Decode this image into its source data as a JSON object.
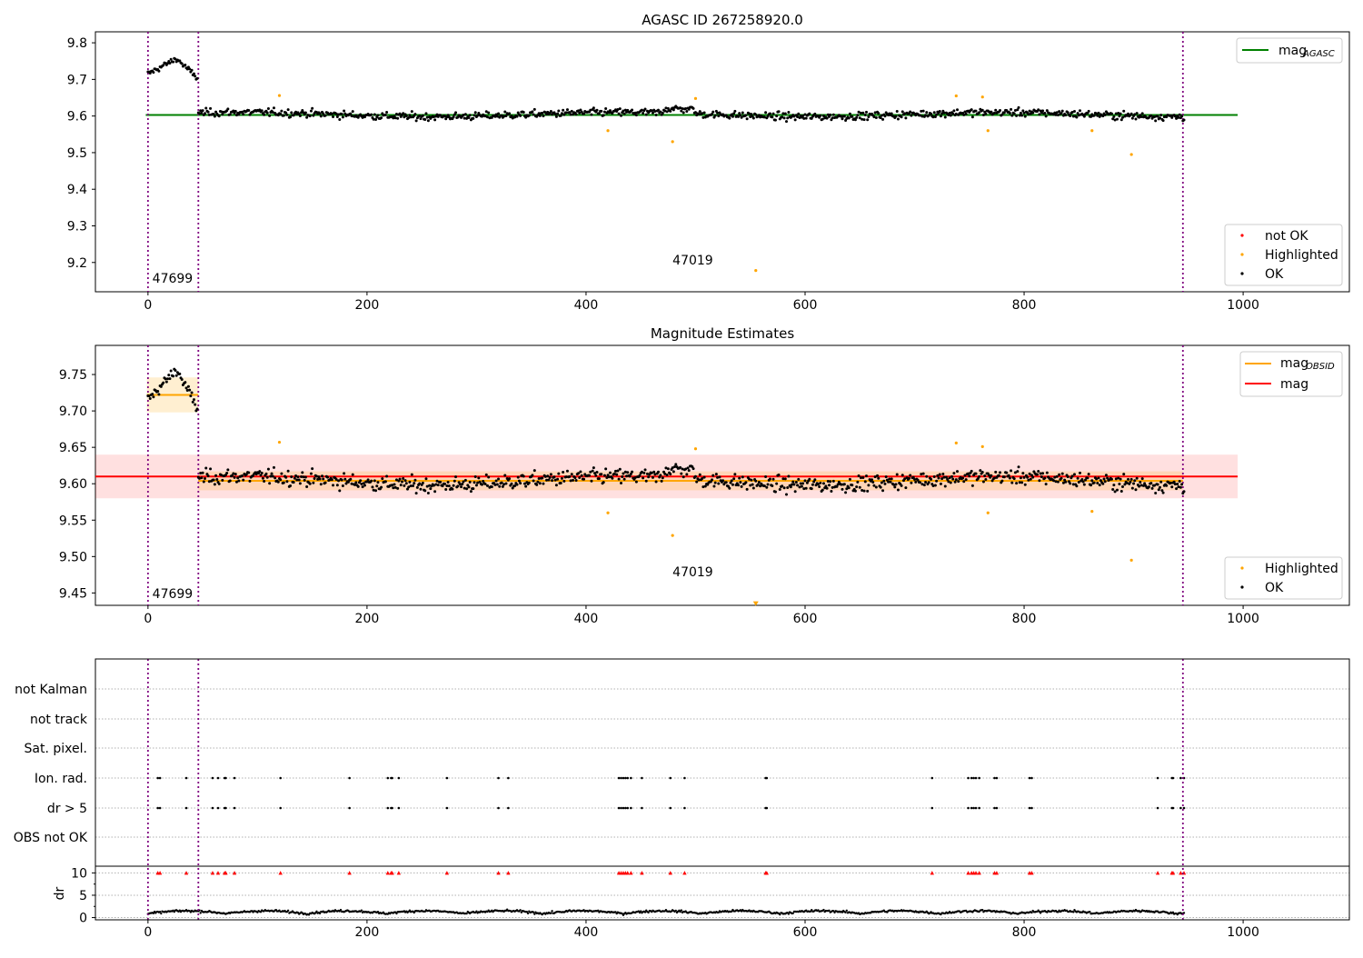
{
  "chart_data": [
    {
      "type": "scatter",
      "title": "AGASC ID 267258920.0",
      "xlim": [
        -48,
        1097
      ],
      "ylim": [
        9.12,
        9.83
      ],
      "x_ticks": [
        "0",
        "200",
        "400",
        "600",
        "800",
        "1000"
      ],
      "y_ticks": [
        "9.2",
        "9.3",
        "9.4",
        "9.5",
        "9.6",
        "9.7",
        "9.8"
      ],
      "vlines": [
        0,
        46,
        945
      ],
      "obsid_labels": [
        {
          "text": "47699",
          "x": 4,
          "y": 9.145
        },
        {
          "text": "47019",
          "x": 479,
          "y": 9.195
        }
      ],
      "mag_agasc": {
        "label_main": "mag",
        "label_sub": "AGASC",
        "value": 9.603,
        "x_range": [
          -2,
          995
        ],
        "color": "#008000"
      },
      "scatter_legend": [
        {
          "label": "not OK",
          "color": "#ff0000"
        },
        {
          "label": "Highlighted",
          "color": "#ffa500"
        },
        {
          "label": "OK",
          "color": "#000000"
        }
      ],
      "highlighted_points": [
        [
          120,
          9.656
        ],
        [
          420,
          9.56
        ],
        [
          479,
          9.53
        ],
        [
          500,
          9.648
        ],
        [
          555,
          9.178
        ],
        [
          738,
          9.655
        ],
        [
          762,
          9.652
        ],
        [
          767,
          9.56
        ],
        [
          862,
          9.56
        ],
        [
          898,
          9.495
        ]
      ],
      "ok_series_note": "black OK points follow a noisy band",
      "grid": false
    },
    {
      "type": "scatter",
      "title": "Magnitude Estimates",
      "xlim": [
        -48,
        1097
      ],
      "ylim": [
        9.433,
        9.79
      ],
      "x_ticks": [
        "0",
        "200",
        "400",
        "600",
        "800",
        "1000"
      ],
      "y_ticks": [
        "9.45",
        "9.50",
        "9.55",
        "9.60",
        "9.65",
        "9.70",
        "9.75"
      ],
      "vlines": [
        0,
        46,
        945
      ],
      "obsid_labels": [
        {
          "text": "47699",
          "x": 4,
          "y": 9.443
        },
        {
          "text": "47019",
          "x": 479,
          "y": 9.473
        }
      ],
      "mag_obsid": {
        "label_main": "mag",
        "label_sub": "OBSID",
        "color": "#ffa500",
        "segments": [
          {
            "x_range": [
              -1,
              46
            ],
            "value": 9.722,
            "band": [
              9.698,
              9.746
            ]
          },
          {
            "x_range": [
              46,
              945
            ],
            "value": 9.604,
            "band": [
              9.591,
              9.617
            ]
          }
        ]
      },
      "mag": {
        "label": "mag",
        "color": "#ff0000",
        "value": 9.61,
        "band": [
          9.58,
          9.64
        ],
        "x_range": [
          -48,
          995
        ]
      },
      "scatter_legend": [
        {
          "label": "Highlighted",
          "color": "#ffa500"
        },
        {
          "label": "OK",
          "color": "#000000"
        }
      ],
      "highlighted_points": [
        [
          120,
          9.657
        ],
        [
          420,
          9.56
        ],
        [
          479,
          9.529
        ],
        [
          500,
          9.648
        ],
        [
          738,
          9.656
        ],
        [
          762,
          9.651
        ],
        [
          767,
          9.56
        ],
        [
          862,
          9.562
        ],
        [
          898,
          9.495
        ]
      ],
      "offscale_markers": [
        [
          555,
          9.436
        ]
      ],
      "grid": false
    },
    {
      "type": "scatter",
      "title": "",
      "xlim": [
        -48,
        1097
      ],
      "x_ticks": [
        "0",
        "200",
        "400",
        "600",
        "800",
        "1000"
      ],
      "categories": [
        "not Kalman",
        "not track",
        "Sat. pixel.",
        "Ion. rad.",
        "dr > 5",
        "OBS not OK"
      ],
      "vlines": [
        0,
        46,
        945
      ],
      "flag_x": [
        9,
        11,
        35,
        59,
        64,
        70,
        71,
        79,
        121,
        184,
        219,
        222,
        223,
        229,
        273,
        320,
        329,
        430,
        432,
        434,
        436,
        438,
        441,
        451,
        477,
        490,
        564,
        565,
        716,
        749,
        752,
        754,
        756,
        759,
        773,
        775,
        805,
        807,
        922,
        935,
        936,
        943,
        946
      ],
      "dr_axis": {
        "ylabel": "dr",
        "ylim": [
          -0.5,
          11.5
        ],
        "y_ticks": [
          "0",
          "5",
          "10"
        ],
        "threshold": 10,
        "marker_color": "#ff0000"
      },
      "grid": true
    }
  ]
}
